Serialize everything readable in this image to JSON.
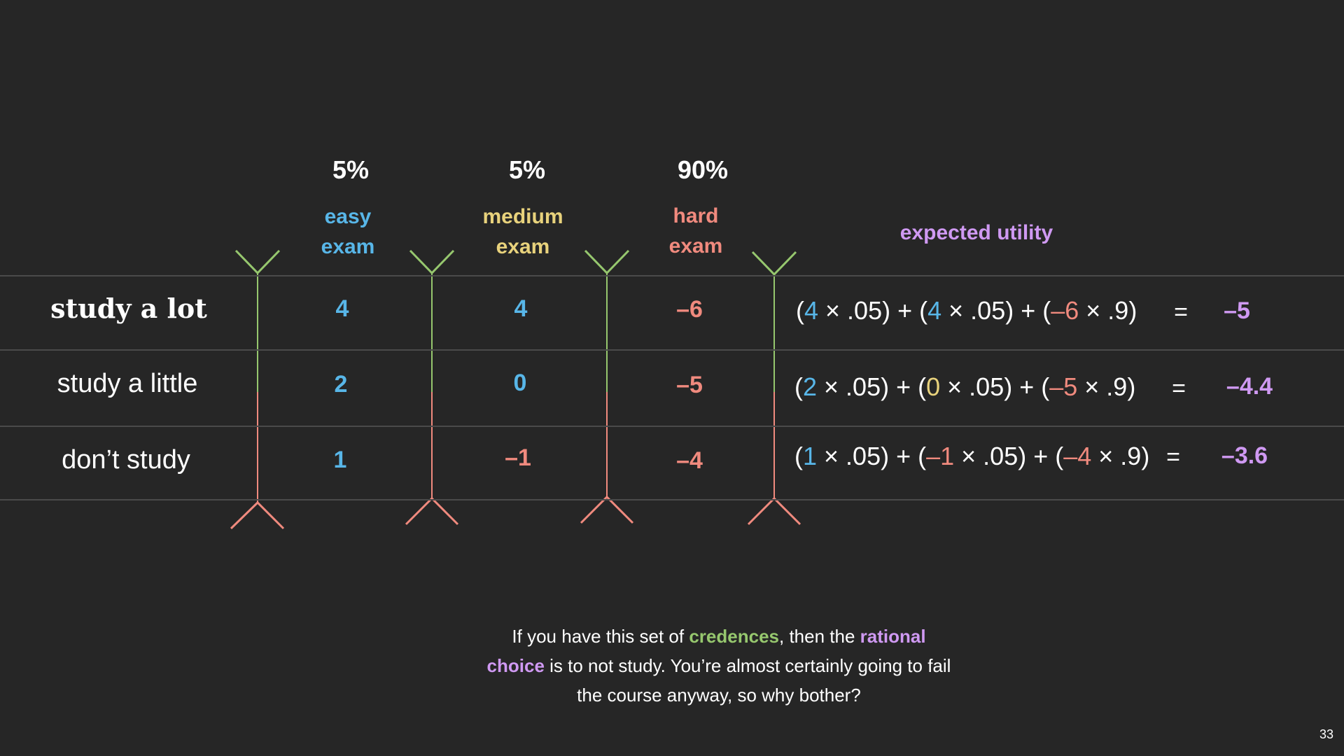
{
  "columns": [
    {
      "probability": "5%",
      "line1": "easy",
      "line2": "exam",
      "color": "#58b6e8"
    },
    {
      "probability": "5%",
      "line1": "medium",
      "line2": "exam",
      "color": "#e8d27c"
    },
    {
      "probability": "90%",
      "line1": "hard",
      "line2": "exam",
      "color": "#f08a7e"
    }
  ],
  "expected_utility_label": "expected utility",
  "rows": [
    {
      "label": "study a lot",
      "values": [
        "4",
        "4",
        "–6"
      ],
      "formula": {
        "open1": "(",
        "v1": "4",
        "mid1": " × .05) + (",
        "v2": "4",
        "mid2": " × .05) + (",
        "v3": "–6",
        "end": " × .9)"
      },
      "equals": "=",
      "result": "–5"
    },
    {
      "label": "study a little",
      "values": [
        "2",
        "0",
        "–5"
      ],
      "formula": {
        "open1": "(",
        "v1": "2",
        "mid1": " × .05) + (",
        "v2": "0",
        "mid2": " × .05) + (",
        "v3": "–5",
        "end": " × .9)"
      },
      "equals": "=",
      "result": "–4.4"
    },
    {
      "label": "don’t study",
      "values": [
        "1",
        "–1",
        "–4"
      ],
      "formula": {
        "open1": "(",
        "v1": "1",
        "mid1": " × .05) + (",
        "v2": "–1",
        "mid2": " × .05) + (",
        "v3": "–4",
        "end": " × .9)"
      },
      "equals": "=",
      "result": "–3.6"
    }
  ],
  "caption": {
    "p1": "If you have this set of ",
    "credences": "credences",
    "p2": ", then the ",
    "rational_choice": "rational choice",
    "p3": " is to not study. You’re almost certainly going to fail the course anyway, so why bother?"
  },
  "page_number": "33",
  "colors": {
    "background": "#262626",
    "blue": "#58b6e8",
    "yellow": "#e8d27c",
    "red": "#f08a7e",
    "green": "#96c76e",
    "purple": "#cf99f2"
  }
}
